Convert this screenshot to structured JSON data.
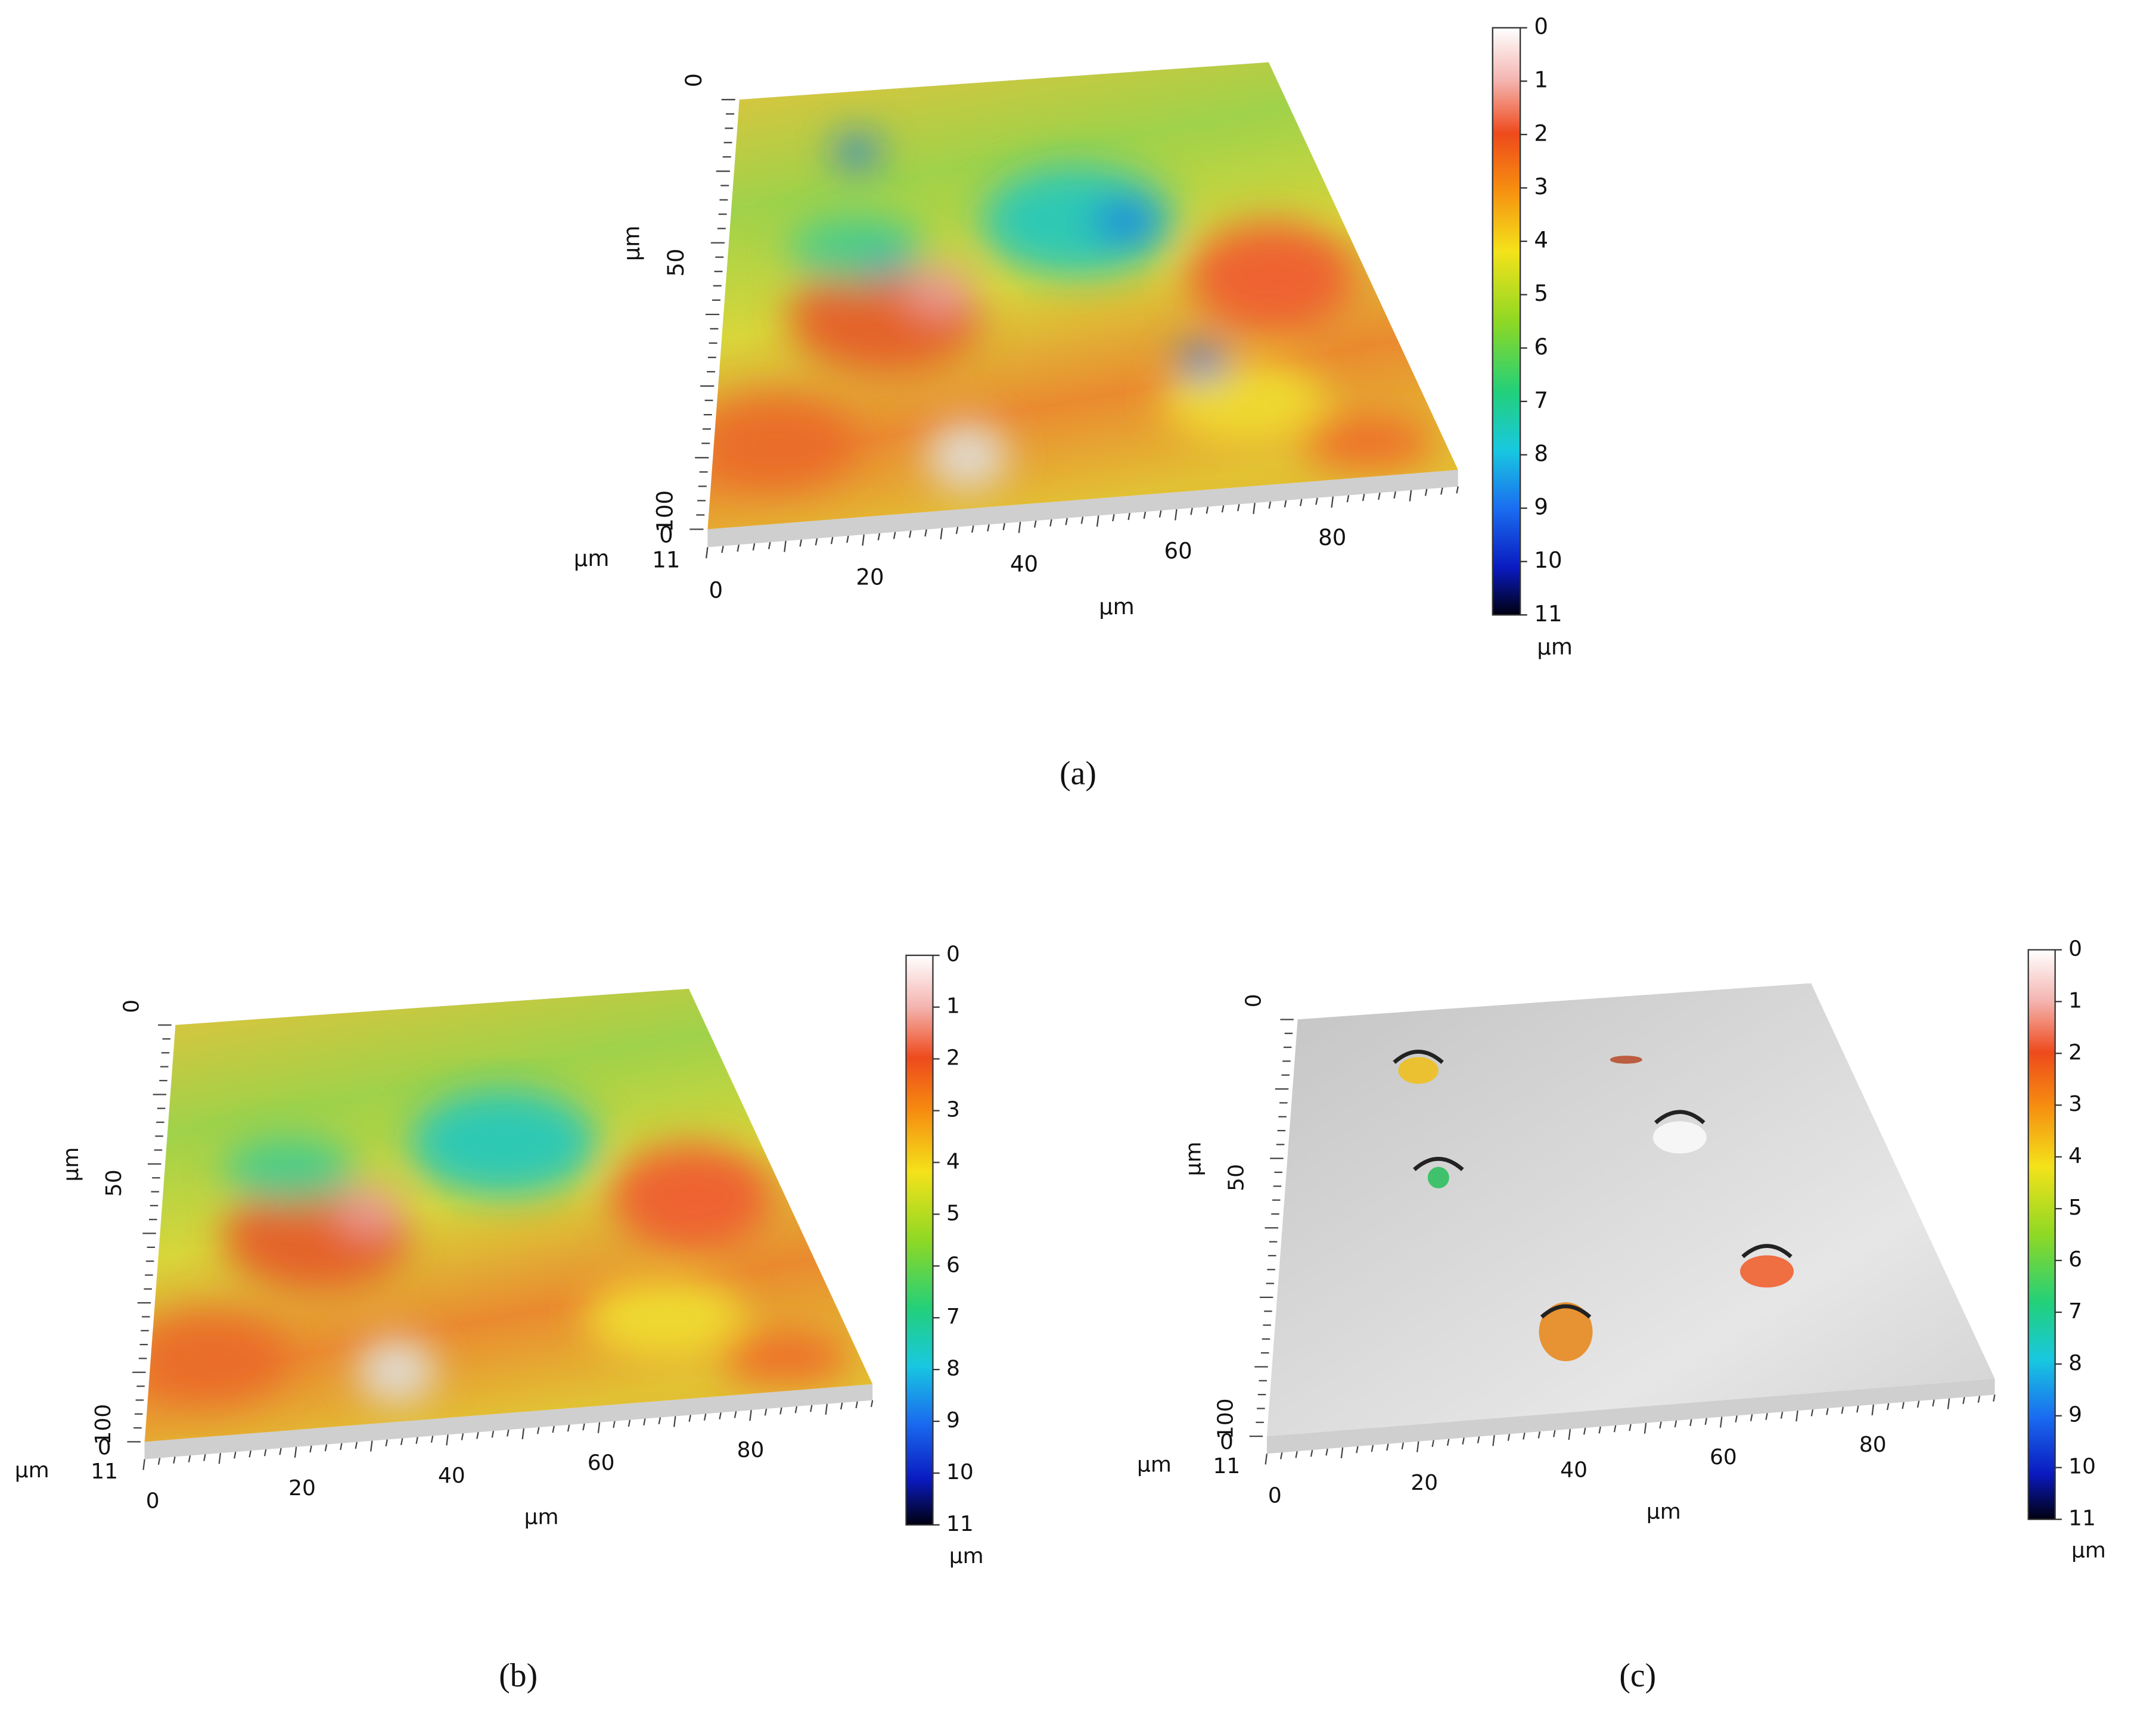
{
  "panels": [
    {
      "label": "(a)",
      "x_axis": {
        "ticks": [
          "0",
          "20",
          "40",
          "60",
          "80"
        ],
        "unit": "µm"
      },
      "y_axis": {
        "ticks": [
          "0",
          "50",
          "100"
        ],
        "unit": "µm"
      },
      "z_axis": {
        "ticks": [
          "0",
          "11"
        ],
        "unit": "µm"
      },
      "colorbar": {
        "ticks": [
          "0",
          "1",
          "2",
          "3",
          "4",
          "5",
          "6",
          "7",
          "8",
          "9",
          "10",
          "11"
        ],
        "unit": "µm"
      }
    },
    {
      "label": "(b)",
      "x_axis": {
        "ticks": [
          "0",
          "20",
          "40",
          "60",
          "80"
        ],
        "unit": "µm"
      },
      "y_axis": {
        "ticks": [
          "0",
          "50",
          "100"
        ],
        "unit": "µm"
      },
      "z_axis": {
        "ticks": [
          "0",
          "11"
        ],
        "unit": "µm"
      },
      "colorbar": {
        "ticks": [
          "0",
          "1",
          "2",
          "3",
          "4",
          "5",
          "6",
          "7",
          "8",
          "9",
          "10",
          "11"
        ],
        "unit": "µm"
      }
    },
    {
      "label": "(c)",
      "x_axis": {
        "ticks": [
          "0",
          "20",
          "40",
          "60",
          "80"
        ],
        "unit": "µm"
      },
      "y_axis": {
        "ticks": [
          "0",
          "50",
          "100"
        ],
        "unit": "µm"
      },
      "z_axis": {
        "ticks": [
          "0",
          "11"
        ],
        "unit": "µm"
      },
      "colorbar": {
        "ticks": [
          "0",
          "1",
          "2",
          "3",
          "4",
          "5",
          "6",
          "7",
          "8",
          "9",
          "10",
          "11"
        ],
        "unit": "µm"
      }
    }
  ]
}
